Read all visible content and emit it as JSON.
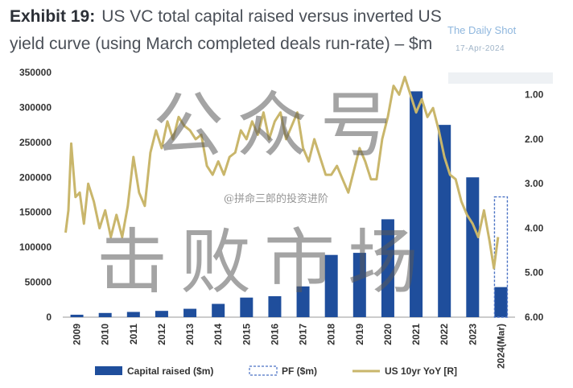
{
  "header": {
    "exhibit": "Exhibit 19:",
    "title": "US VC total capital raised versus inverted US yield curve (using March completed deals run-rate) – $m"
  },
  "watermark": {
    "source": "The Daily Shot",
    "date": "17-Apr-2024",
    "overlay_line1": "公众号",
    "overlay_line2": "击败市场",
    "handle": "@拼命三郎的投资进阶"
  },
  "colors": {
    "bar": "#1f4e9c",
    "line": "#c9b66b",
    "pf_border": "#4a72c4"
  },
  "chart_data": {
    "type": "bar",
    "categories": [
      "2009",
      "2010",
      "2011",
      "2012",
      "2013",
      "2014",
      "2015",
      "2016",
      "2017",
      "2018",
      "2019",
      "2020",
      "2021",
      "2022",
      "2023",
      "2024(Mar)"
    ],
    "series": [
      {
        "name": "Capital raised ($m)",
        "type": "bar",
        "values": [
          3500,
          6000,
          7500,
          9000,
          12000,
          19000,
          28000,
          30000,
          44000,
          89000,
          92000,
          140000,
          323000,
          275000,
          200000,
          43000
        ]
      },
      {
        "name": "PF ($m)",
        "type": "bar-outline",
        "values": [
          null,
          null,
          null,
          null,
          null,
          null,
          null,
          null,
          null,
          null,
          null,
          null,
          null,
          null,
          null,
          172000
        ]
      },
      {
        "name": "US 10yr YoY [R]",
        "type": "line",
        "axis": "right",
        "x": [
          2009.0,
          2009.1,
          2009.2,
          2009.35,
          2009.5,
          2009.65,
          2009.8,
          2010.0,
          2010.2,
          2010.4,
          2010.6,
          2010.8,
          2011.0,
          2011.2,
          2011.4,
          2011.6,
          2011.8,
          2012.0,
          2012.2,
          2012.4,
          2012.6,
          2012.8,
          2013.0,
          2013.2,
          2013.4,
          2013.6,
          2013.8,
          2014.0,
          2014.2,
          2014.4,
          2014.6,
          2014.8,
          2015.0,
          2015.2,
          2015.4,
          2015.6,
          2015.8,
          2016.0,
          2016.2,
          2016.4,
          2016.6,
          2016.8,
          2017.0,
          2017.2,
          2017.4,
          2017.6,
          2017.8,
          2018.0,
          2018.2,
          2018.4,
          2018.6,
          2018.8,
          2019.0,
          2019.2,
          2019.4,
          2019.6,
          2019.8,
          2020.0,
          2020.2,
          2020.4,
          2020.6,
          2020.8,
          2021.0,
          2021.2,
          2021.4,
          2021.6,
          2021.8,
          2022.0,
          2022.2,
          2022.4,
          2022.6,
          2022.8,
          2023.0,
          2023.2,
          2023.4,
          2023.6,
          2023.8,
          2024.0,
          2024.15,
          2024.3
        ],
        "values": [
          4.1,
          3.6,
          2.1,
          3.3,
          3.2,
          3.9,
          3.0,
          3.4,
          4.0,
          3.6,
          4.2,
          3.7,
          4.2,
          3.5,
          2.4,
          3.2,
          3.5,
          2.3,
          1.8,
          2.2,
          1.6,
          2.0,
          1.5,
          1.7,
          1.8,
          2.0,
          1.9,
          2.6,
          2.8,
          2.5,
          2.8,
          2.4,
          2.3,
          1.8,
          2.0,
          1.6,
          1.9,
          1.4,
          2.0,
          1.6,
          1.4,
          2.0,
          1.7,
          1.4,
          2.2,
          2.5,
          2.0,
          2.4,
          2.8,
          2.8,
          2.6,
          2.9,
          3.2,
          2.7,
          2.2,
          2.5,
          2.9,
          2.9,
          2.0,
          1.5,
          0.8,
          1.0,
          0.6,
          1.0,
          1.4,
          1.1,
          1.5,
          1.3,
          1.8,
          2.4,
          2.8,
          2.9,
          3.4,
          3.7,
          3.9,
          4.2,
          3.6,
          4.3,
          4.9,
          4.2
        ]
      }
    ],
    "xlabel": "",
    "ylabel": "",
    "ylim": [
      0,
      350000
    ],
    "y_ticks": [
      "0",
      "50000",
      "100000",
      "150000",
      "200000",
      "250000",
      "300000",
      "350000"
    ],
    "y2_ticks": [
      "1.00",
      "2.00",
      "3.00",
      "4.00",
      "5.00",
      "6.00"
    ],
    "y2lim": [
      0.5,
      6.0
    ],
    "y2_inverted": true,
    "legend": [
      {
        "label": "Capital raised ($m)",
        "style": "bar"
      },
      {
        "label": "PF ($m)",
        "style": "outline"
      },
      {
        "label": "US 10yr YoY [R]",
        "style": "line"
      }
    ],
    "legend_position": "bottom",
    "grid": false
  }
}
